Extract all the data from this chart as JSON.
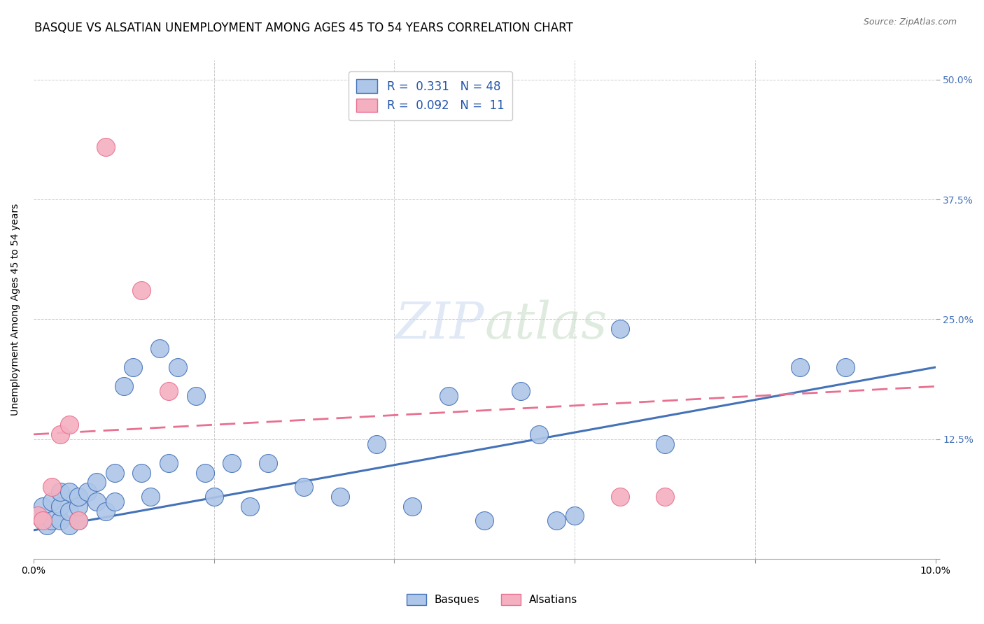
{
  "title": "BASQUE VS ALSATIAN UNEMPLOYMENT AMONG AGES 45 TO 54 YEARS CORRELATION CHART",
  "source": "Source: ZipAtlas.com",
  "ylabel": "Unemployment Among Ages 45 to 54 years",
  "xlim": [
    0.0,
    0.1
  ],
  "ylim": [
    0.0,
    0.52
  ],
  "yticks": [
    0.0,
    0.125,
    0.25,
    0.375,
    0.5
  ],
  "ytick_labels": [
    "",
    "12.5%",
    "25.0%",
    "37.5%",
    "50.0%"
  ],
  "xticks": [
    0.0,
    0.02,
    0.04,
    0.06,
    0.08,
    0.1
  ],
  "xtick_labels": [
    "0.0%",
    "",
    "",
    "",
    "",
    "10.0%"
  ],
  "basque_color": "#aec6e8",
  "alsatian_color": "#f4b0c0",
  "basque_line_color": "#4472b8",
  "alsatian_line_color": "#e87090",
  "legend_R_basque": "0.331",
  "legend_N_basque": "48",
  "legend_R_alsatian": "0.092",
  "legend_N_alsatian": "11",
  "basque_x": [
    0.0005,
    0.001,
    0.001,
    0.0015,
    0.002,
    0.002,
    0.003,
    0.003,
    0.003,
    0.004,
    0.004,
    0.004,
    0.005,
    0.005,
    0.005,
    0.006,
    0.007,
    0.007,
    0.008,
    0.009,
    0.009,
    0.01,
    0.011,
    0.012,
    0.013,
    0.014,
    0.015,
    0.016,
    0.018,
    0.019,
    0.02,
    0.022,
    0.024,
    0.026,
    0.03,
    0.034,
    0.038,
    0.042,
    0.046,
    0.05,
    0.054,
    0.056,
    0.058,
    0.06,
    0.065,
    0.07,
    0.085,
    0.09
  ],
  "basque_y": [
    0.045,
    0.04,
    0.055,
    0.035,
    0.04,
    0.06,
    0.04,
    0.055,
    0.07,
    0.035,
    0.05,
    0.07,
    0.04,
    0.055,
    0.065,
    0.07,
    0.08,
    0.06,
    0.05,
    0.09,
    0.06,
    0.18,
    0.2,
    0.09,
    0.065,
    0.22,
    0.1,
    0.2,
    0.17,
    0.09,
    0.065,
    0.1,
    0.055,
    0.1,
    0.075,
    0.065,
    0.12,
    0.055,
    0.17,
    0.04,
    0.175,
    0.13,
    0.04,
    0.045,
    0.24,
    0.12,
    0.2,
    0.2
  ],
  "alsatian_x": [
    0.0005,
    0.001,
    0.002,
    0.003,
    0.004,
    0.005,
    0.008,
    0.012,
    0.015,
    0.065,
    0.07
  ],
  "alsatian_y": [
    0.045,
    0.04,
    0.075,
    0.13,
    0.14,
    0.04,
    0.43,
    0.28,
    0.175,
    0.065,
    0.065
  ],
  "basque_trend_x": [
    0.0,
    0.1
  ],
  "basque_trend_y": [
    0.03,
    0.2
  ],
  "alsatian_trend_x": [
    0.0,
    0.1
  ],
  "alsatian_trend_y": [
    0.13,
    0.18
  ],
  "grid_color": "#cccccc",
  "background_color": "#ffffff",
  "title_fontsize": 12,
  "axis_label_fontsize": 10,
  "tick_fontsize": 10,
  "legend_fontsize": 12
}
